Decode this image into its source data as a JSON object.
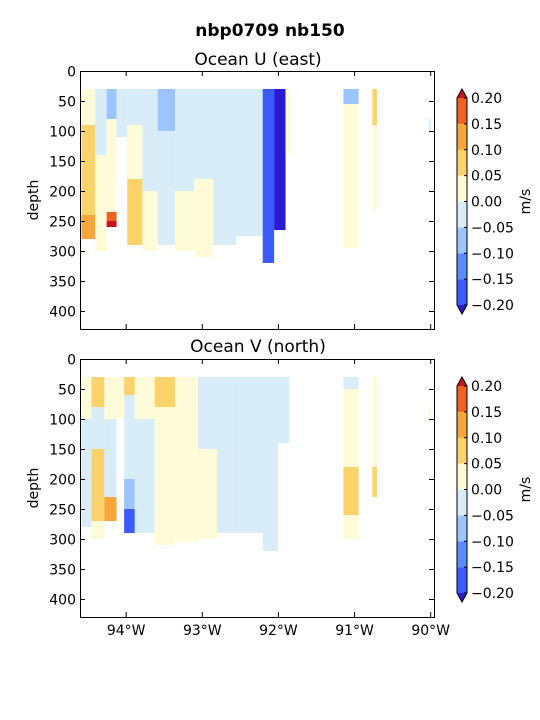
{
  "figure": {
    "suptitle": "nbp0709 nb150"
  },
  "colorbar_levels": [
    {
      "lo": -0.2,
      "hi": -0.15,
      "color": "#3b5bff"
    },
    {
      "lo": -0.15,
      "hi": -0.1,
      "color": "#5b8cff"
    },
    {
      "lo": -0.1,
      "hi": -0.05,
      "color": "#9cc5ff"
    },
    {
      "lo": -0.05,
      "hi": 0.0,
      "color": "#d8edf8"
    },
    {
      "lo": 0.0,
      "hi": 0.05,
      "color": "#fefcd8"
    },
    {
      "lo": 0.05,
      "hi": 0.1,
      "color": "#fbd36a"
    },
    {
      "lo": 0.1,
      "hi": 0.15,
      "color": "#f7a63a"
    },
    {
      "lo": 0.15,
      "hi": 0.2,
      "color": "#ed6222"
    }
  ],
  "extend_colors": {
    "under": "#2a1ad2",
    "over": "#c8141e"
  },
  "chart_data": [
    {
      "type": "heatmap",
      "title": "Ocean U (east)",
      "ylabel": "depth",
      "colorbar_label": "m/s",
      "colorbar_ticks": [
        "0.20",
        "0.15",
        "0.10",
        "0.05",
        "0.00",
        "−0.05",
        "−0.10",
        "−0.15",
        "−0.20"
      ],
      "colorbar_tick_values": [
        0.2,
        0.15,
        0.1,
        0.05,
        0.0,
        -0.05,
        -0.1,
        -0.15,
        -0.2
      ],
      "xlim": [
        -94.6,
        -89.95
      ],
      "ylim": [
        430,
        0
      ],
      "x_ticks": [
        -94,
        -93,
        -92,
        -91,
        -90
      ],
      "x_tick_labels": [
        "",
        "",
        "",
        "",
        ""
      ],
      "y_ticks": [
        0,
        50,
        100,
        150,
        200,
        250,
        300,
        350,
        400
      ],
      "y_tick_labels": [
        "0",
        "50",
        "100",
        "150",
        "200",
        "250",
        "300",
        "350",
        "400"
      ],
      "clim": [
        -0.2,
        0.2
      ],
      "depth_top": 30,
      "columns": [
        {
          "x0": -94.58,
          "x1": -94.4,
          "bottom": 280,
          "seg": [
            [
              30,
              90,
              0.02
            ],
            [
              90,
              240,
              0.08
            ],
            [
              240,
              280,
              0.11
            ]
          ]
        },
        {
          "x0": -94.4,
          "x1": -94.25,
          "bottom": 300,
          "seg": [
            [
              30,
              140,
              -0.03
            ],
            [
              140,
              300,
              0.02
            ]
          ]
        },
        {
          "x0": -94.25,
          "x1": -94.12,
          "bottom": 260,
          "seg": [
            [
              30,
              80,
              -0.07
            ],
            [
              80,
              235,
              0.01
            ],
            [
              235,
              250,
              0.16
            ],
            [
              250,
              260,
              0.22
            ]
          ]
        },
        {
          "x0": -94.12,
          "x1": -93.98,
          "bottom": 110,
          "seg": [
            [
              30,
              110,
              -0.04
            ]
          ]
        },
        {
          "x0": -93.98,
          "x1": -93.78,
          "bottom": 290,
          "seg": [
            [
              30,
              90,
              -0.02
            ],
            [
              90,
              180,
              0.04
            ],
            [
              180,
              290,
              0.08
            ]
          ]
        },
        {
          "x0": -93.78,
          "x1": -93.58,
          "bottom": 300,
          "seg": [
            [
              30,
              200,
              -0.03
            ],
            [
              200,
              300,
              0.02
            ]
          ]
        },
        {
          "x0": -93.58,
          "x1": -93.35,
          "bottom": 290,
          "seg": [
            [
              30,
              100,
              -0.06
            ],
            [
              100,
              290,
              -0.02
            ]
          ]
        },
        {
          "x0": -93.35,
          "x1": -93.1,
          "bottom": 300,
          "seg": [
            [
              30,
              200,
              -0.03
            ],
            [
              200,
              300,
              0.02
            ]
          ]
        },
        {
          "x0": -93.1,
          "x1": -92.85,
          "bottom": 310,
          "seg": [
            [
              30,
              180,
              -0.02
            ],
            [
              180,
              310,
              0.02
            ]
          ]
        },
        {
          "x0": -92.85,
          "x1": -92.55,
          "bottom": 290,
          "seg": [
            [
              30,
              110,
              -0.05
            ],
            [
              110,
              290,
              -0.02
            ]
          ]
        },
        {
          "x0": -92.55,
          "x1": -92.2,
          "bottom": 275,
          "seg": [
            [
              30,
              150,
              -0.04
            ],
            [
              150,
              275,
              -0.03
            ]
          ]
        },
        {
          "x0": -92.2,
          "x1": -92.05,
          "bottom": 320,
          "seg": [
            [
              30,
              90,
              -0.16
            ],
            [
              90,
              320,
              -0.19
            ]
          ]
        },
        {
          "x0": -92.05,
          "x1": -91.9,
          "bottom": 265,
          "seg": [
            [
              30,
              130,
              -0.22
            ],
            [
              130,
              265,
              -0.23
            ]
          ]
        },
        {
          "x0": -91.9,
          "x1": -91.85,
          "bottom": 140,
          "seg": [
            [
              30,
              140,
              0.01
            ]
          ]
        },
        {
          "x0": -91.14,
          "x1": -90.94,
          "bottom": 295,
          "seg": [
            [
              30,
              55,
              -0.07
            ],
            [
              55,
              295,
              0.02
            ]
          ]
        },
        {
          "x0": -90.76,
          "x1": -90.7,
          "bottom": 230,
          "seg": [
            [
              30,
              90,
              0.07
            ],
            [
              90,
              230,
              0.03
            ]
          ]
        },
        {
          "x0": -90.02,
          "x1": -89.99,
          "bottom": 100,
          "seg": [
            [
              80,
              100,
              -0.03
            ]
          ]
        }
      ]
    },
    {
      "type": "heatmap",
      "title": "Ocean V (north)",
      "ylabel": "depth",
      "colorbar_label": "m/s",
      "colorbar_ticks": [
        "0.20",
        "0.15",
        "0.10",
        "0.05",
        "0.00",
        "−0.05",
        "−0.10",
        "−0.15",
        "−0.20"
      ],
      "colorbar_tick_values": [
        0.2,
        0.15,
        0.1,
        0.05,
        0.0,
        -0.05,
        -0.1,
        -0.15,
        -0.2
      ],
      "xlim": [
        -94.6,
        -89.95
      ],
      "ylim": [
        430,
        0
      ],
      "x_ticks": [
        -94,
        -93,
        -92,
        -91,
        -90
      ],
      "x_tick_labels": [
        "94°W",
        "93°W",
        "92°W",
        "91°W",
        "90°W"
      ],
      "y_ticks": [
        0,
        50,
        100,
        150,
        200,
        250,
        300,
        350,
        400
      ],
      "y_tick_labels": [
        "0",
        "50",
        "100",
        "150",
        "200",
        "250",
        "300",
        "350",
        "400"
      ],
      "clim": [
        -0.2,
        0.2
      ],
      "depth_top": 30,
      "columns": [
        {
          "x0": -94.58,
          "x1": -94.45,
          "bottom": 280,
          "seg": [
            [
              30,
              100,
              0.02
            ],
            [
              100,
              280,
              -0.04
            ]
          ]
        },
        {
          "x0": -94.45,
          "x1": -94.28,
          "bottom": 300,
          "seg": [
            [
              30,
              80,
              0.06
            ],
            [
              80,
              150,
              -0.02
            ],
            [
              150,
              270,
              0.09
            ],
            [
              270,
              300,
              0.03
            ]
          ]
        },
        {
          "x0": -94.28,
          "x1": -94.12,
          "bottom": 270,
          "seg": [
            [
              30,
              100,
              0.02
            ],
            [
              100,
              230,
              -0.03
            ],
            [
              230,
              270,
              0.12
            ]
          ]
        },
        {
          "x0": -94.12,
          "x1": -94.02,
          "bottom": 100,
          "seg": [
            [
              30,
              100,
              0.03
            ]
          ]
        },
        {
          "x0": -94.02,
          "x1": -93.88,
          "bottom": 290,
          "seg": [
            [
              30,
              60,
              0.07
            ],
            [
              60,
              200,
              -0.03
            ],
            [
              200,
              250,
              -0.07
            ],
            [
              250,
              290,
              -0.16
            ]
          ]
        },
        {
          "x0": -93.88,
          "x1": -93.62,
          "bottom": 290,
          "seg": [
            [
              30,
              100,
              0.02
            ],
            [
              100,
              290,
              -0.03
            ]
          ]
        },
        {
          "x0": -93.62,
          "x1": -93.35,
          "bottom": 310,
          "seg": [
            [
              30,
              80,
              0.06
            ],
            [
              80,
              310,
              0.02
            ]
          ]
        },
        {
          "x0": -93.35,
          "x1": -93.05,
          "bottom": 305,
          "seg": [
            [
              30,
              220,
              0.02
            ],
            [
              220,
              305,
              0.01
            ]
          ]
        },
        {
          "x0": -93.05,
          "x1": -92.8,
          "bottom": 300,
          "seg": [
            [
              30,
              150,
              -0.03
            ],
            [
              150,
              300,
              0.02
            ]
          ]
        },
        {
          "x0": -92.8,
          "x1": -92.5,
          "bottom": 290,
          "seg": [
            [
              30,
              120,
              -0.04
            ],
            [
              120,
              290,
              -0.02
            ]
          ]
        },
        {
          "x0": -92.5,
          "x1": -92.2,
          "bottom": 290,
          "seg": [
            [
              30,
              100,
              -0.02
            ],
            [
              100,
              290,
              -0.03
            ]
          ]
        },
        {
          "x0": -92.2,
          "x1": -92.0,
          "bottom": 320,
          "seg": [
            [
              30,
              130,
              -0.05
            ],
            [
              130,
              320,
              -0.03
            ]
          ]
        },
        {
          "x0": -92.0,
          "x1": -91.85,
          "bottom": 140,
          "seg": [
            [
              30,
              140,
              -0.02
            ]
          ]
        },
        {
          "x0": -91.14,
          "x1": -90.94,
          "bottom": 300,
          "seg": [
            [
              30,
              50,
              -0.03
            ],
            [
              50,
              180,
              0.01
            ],
            [
              180,
              260,
              0.06
            ],
            [
              260,
              300,
              0.02
            ]
          ]
        },
        {
          "x0": -90.76,
          "x1": -90.7,
          "bottom": 230,
          "seg": [
            [
              30,
              180,
              0.01
            ],
            [
              180,
              230,
              0.07
            ]
          ]
        },
        {
          "x0": -90.02,
          "x1": -89.99,
          "bottom": 100,
          "seg": [
            [
              80,
              100,
              0.01
            ]
          ]
        }
      ]
    }
  ]
}
